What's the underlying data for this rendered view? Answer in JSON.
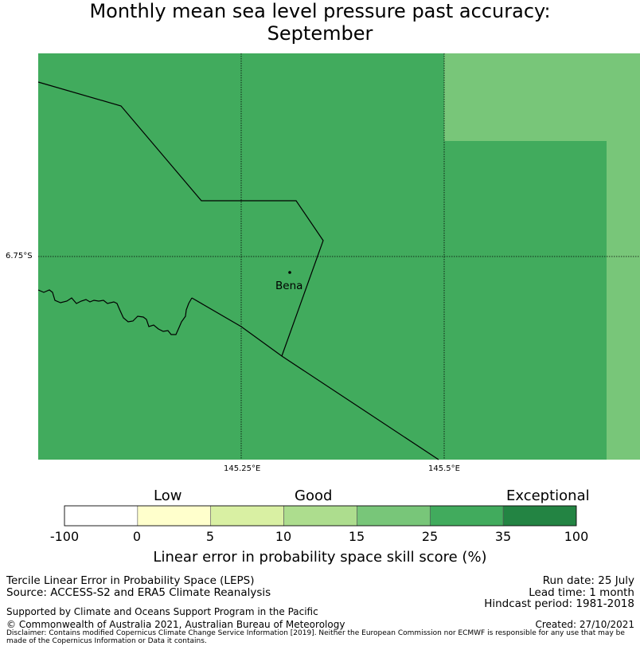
{
  "title": {
    "line1": "Monthly mean sea level pressure past accuracy:",
    "line2": "September"
  },
  "map": {
    "lat_label": "6.75°S",
    "lon_labels": [
      "145.25°E",
      "145.5°E"
    ],
    "place_name": "Bena",
    "colors": {
      "main_fill": "#41ab5d",
      "light_fill": "#78c679",
      "border": "#000000"
    }
  },
  "colorbar": {
    "category_labels": [
      "Low",
      "Good",
      "Exceptional"
    ],
    "tick_labels": [
      "-100",
      "0",
      "5",
      "10",
      "15",
      "25",
      "35",
      "100"
    ],
    "colors": [
      "#ffffff",
      "#ffffcc",
      "#d9f0a3",
      "#addd8e",
      "#78c679",
      "#41ab5d",
      "#238443"
    ],
    "title": "Linear error in probability space skill score (%)"
  },
  "footer": {
    "left_line1": "Tercile Linear Error in Probability Space (LEPS)",
    "left_line2": "Source: ACCESS-S2 and ERA5 Climate Reanalysis",
    "right_line1": "Run date: 25 July",
    "right_line2": "Lead time: 1 month",
    "right_line3": "Hindcast period: 1981-2018",
    "support": "Supported by Climate and Oceans Support Program in the Pacific",
    "copyright": "© Commonwealth of Australia 2021, Australian Bureau of Meteorology",
    "created": "Created: 27/10/2021",
    "disclaimer": "Disclaimer: Contains modified Copernicus Climate Change Service Information [2019]. Neither the European Commission nor ECMWF is responsible for any use that may be made of the Copernicus Information or Data it contains."
  }
}
